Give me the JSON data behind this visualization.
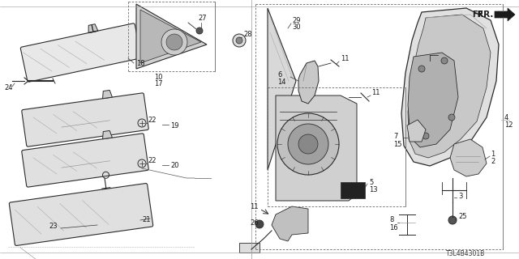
{
  "bg_color": "#ffffff",
  "diagram_id": "T3L4B4301B",
  "line_color": "#2a2a2a",
  "light_gray": "#aaaaaa",
  "med_gray": "#888888",
  "dark_fill": "#555555",
  "light_fill": "#dddddd",
  "mid_fill": "#bbbbbb"
}
